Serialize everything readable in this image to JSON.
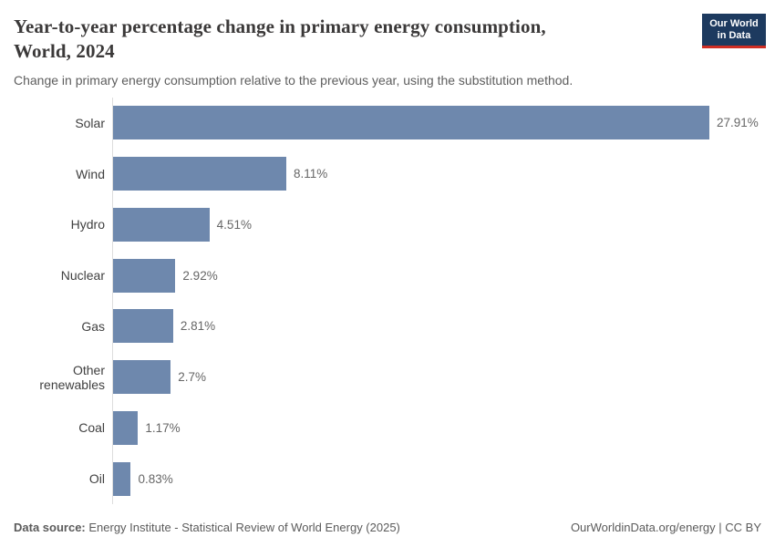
{
  "header": {
    "title_line1": "Year-to-year percentage change in primary energy consumption,",
    "title_line2": "World, 2024",
    "title_full": "Year-to-year percentage change in primary energy consumption, World, 2024",
    "subtitle": "Change in primary energy consumption relative to the previous year, using the substitution method."
  },
  "logo": {
    "line1": "Our World",
    "line2": "in Data",
    "bg_color": "#1d3a5f",
    "stripe_color": "#cf2e24",
    "text_color": "#ffffff"
  },
  "chart_data": {
    "type": "bar",
    "orientation": "horizontal",
    "title": "Year-to-year percentage change in primary energy consumption, World, 2024",
    "subtitle": "Change in primary energy consumption relative to the previous year, using the substitution method.",
    "categories": [
      "Solar",
      "Wind",
      "Hydro",
      "Nuclear",
      "Gas",
      "Other renewables",
      "Coal",
      "Oil"
    ],
    "values": [
      27.91,
      8.11,
      4.51,
      2.92,
      2.81,
      2.7,
      1.17,
      0.83
    ],
    "value_labels": [
      "27.91%",
      "8.11%",
      "4.51%",
      "2.92%",
      "2.81%",
      "2.7%",
      "1.17%",
      "0.83%"
    ],
    "unit": "%",
    "xlim": [
      0,
      27.91
    ],
    "grid": false,
    "legend": false,
    "bar_color": "#6e88ad",
    "axis_color": "#dddddd",
    "label_color": "#404040",
    "value_label_color": "#666666"
  },
  "footer": {
    "datasource_label": "Data source:",
    "datasource_text": " Energy Institute - Statistical Review of World Energy (2025)",
    "attribution": "OurWorldinData.org/energy | CC BY"
  }
}
